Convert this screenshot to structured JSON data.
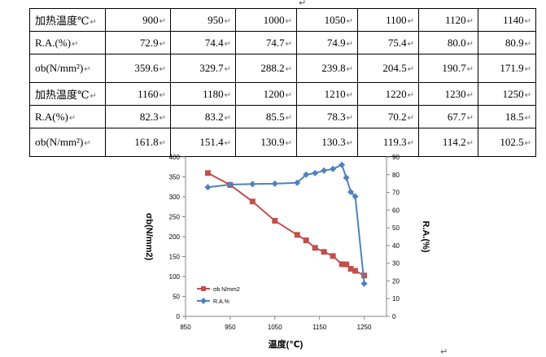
{
  "para_mark": "↵",
  "table": {
    "rows": [
      {
        "label": "加热温度℃",
        "values": [
          "900",
          "950",
          "1000",
          "1050",
          "1100",
          "1120",
          "1140"
        ]
      },
      {
        "label": "R.A.(%)",
        "values": [
          "72.9",
          "74.4",
          "74.7",
          "74.9",
          "75.4",
          "80.0",
          "80.9"
        ]
      },
      {
        "label": "σb(N/mm²)",
        "values": [
          "359.6",
          "329.7",
          "288.2",
          "239.8",
          "204.5",
          "190.7",
          "171.9"
        ]
      },
      {
        "label": "加热温度℃",
        "values": [
          "1160",
          "1180",
          "1200",
          "1210",
          "1220",
          "1230",
          "1250"
        ]
      },
      {
        "label": "R.A(%)",
        "values": [
          "82.3",
          "83.2",
          "85.5",
          "78.3",
          "70.2",
          "67.7",
          "18.5"
        ]
      },
      {
        "label": "σb(N/mm²)",
        "values": [
          "161.8",
          "151.4",
          "130.9",
          "130.3",
          "119.3",
          "114.2",
          "102.5"
        ]
      }
    ]
  },
  "chart_data": {
    "type": "line",
    "xlabel": "温度(℃)",
    "ylabel_left": "σb(N/mm2)",
    "ylabel_right": "R.A.(%)",
    "xlim": [
      850,
      1300
    ],
    "xticks": [
      850,
      950,
      1050,
      1150,
      1250
    ],
    "ylim_left": [
      0,
      400
    ],
    "yticks_left": [
      0,
      50,
      100,
      150,
      200,
      250,
      300,
      350,
      400
    ],
    "ylim_right": [
      0,
      90
    ],
    "yticks_right": [
      0,
      10,
      20,
      30,
      40,
      50,
      60,
      70,
      80,
      90
    ],
    "grid": false,
    "legend_position": "bottom-left",
    "series": [
      {
        "name": "σb N/mm2",
        "axis": "left",
        "color": "#C0504D",
        "marker": "square",
        "x": [
          900,
          950,
          1000,
          1050,
          1100,
          1120,
          1140,
          1160,
          1180,
          1200,
          1210,
          1220,
          1230,
          1250
        ],
        "y": [
          359.6,
          329.7,
          288.2,
          239.8,
          204.5,
          190.7,
          171.9,
          161.8,
          151.4,
          130.9,
          130.3,
          119.3,
          114.2,
          102.5
        ]
      },
      {
        "name": "R.A.%",
        "axis": "right",
        "color": "#4F81BD",
        "marker": "diamond",
        "x": [
          900,
          950,
          1000,
          1050,
          1100,
          1120,
          1140,
          1160,
          1180,
          1200,
          1210,
          1220,
          1230,
          1250
        ],
        "y": [
          72.9,
          74.4,
          74.7,
          74.9,
          75.4,
          80.0,
          80.9,
          82.3,
          83.2,
          85.5,
          78.3,
          70.2,
          67.7,
          18.5
        ]
      }
    ]
  }
}
